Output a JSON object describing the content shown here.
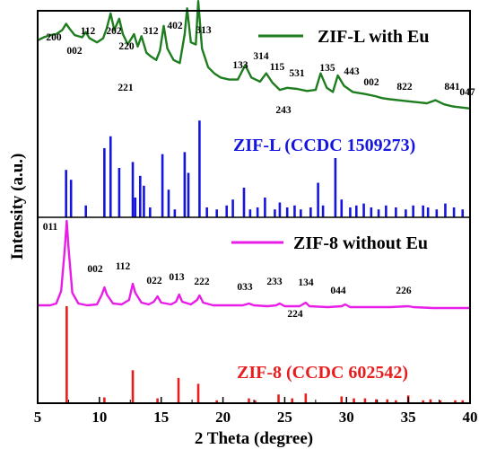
{
  "chart_data": {
    "type": "line",
    "xlabel": "2 Theta (degree)",
    "ylabel": "Intensity (a.u.)",
    "xlim": [
      5,
      40
    ],
    "x_ticks": [
      5,
      10,
      15,
      20,
      25,
      30,
      35,
      40
    ],
    "grid": false,
    "series": [
      {
        "name": "ZIF-L with Eu",
        "kind": "line",
        "color": "#1e7d1e",
        "points": [
          [
            5.0,
            0.74
          ],
          [
            5.5,
            0.77
          ],
          [
            6.0,
            0.79
          ],
          [
            6.5,
            0.8
          ],
          [
            7.0,
            0.84
          ],
          [
            7.3,
            0.9
          ],
          [
            7.6,
            0.85
          ],
          [
            8.0,
            0.79
          ],
          [
            8.6,
            0.77
          ],
          [
            8.9,
            0.82
          ],
          [
            9.2,
            0.76
          ],
          [
            9.8,
            0.72
          ],
          [
            10.3,
            0.76
          ],
          [
            10.6,
            0.86
          ],
          [
            10.9,
            1.0
          ],
          [
            11.2,
            0.84
          ],
          [
            11.6,
            0.95
          ],
          [
            11.9,
            0.8
          ],
          [
            12.3,
            0.7
          ],
          [
            12.8,
            0.8
          ],
          [
            13.1,
            0.68
          ],
          [
            13.4,
            0.78
          ],
          [
            13.8,
            0.62
          ],
          [
            14.2,
            0.58
          ],
          [
            14.6,
            0.55
          ],
          [
            14.9,
            0.64
          ],
          [
            15.2,
            0.88
          ],
          [
            15.5,
            0.66
          ],
          [
            16.0,
            0.55
          ],
          [
            16.5,
            0.52
          ],
          [
            16.9,
            0.8
          ],
          [
            17.1,
            1.05
          ],
          [
            17.4,
            0.72
          ],
          [
            17.8,
            0.7
          ],
          [
            18.0,
            1.12
          ],
          [
            18.3,
            0.66
          ],
          [
            18.8,
            0.48
          ],
          [
            19.3,
            0.42
          ],
          [
            19.8,
            0.38
          ],
          [
            20.5,
            0.36
          ],
          [
            21.2,
            0.36
          ],
          [
            21.8,
            0.5
          ],
          [
            22.3,
            0.38
          ],
          [
            23.0,
            0.34
          ],
          [
            23.5,
            0.42
          ],
          [
            24.0,
            0.33
          ],
          [
            24.6,
            0.26
          ],
          [
            25.2,
            0.28
          ],
          [
            26.0,
            0.27
          ],
          [
            26.8,
            0.25
          ],
          [
            27.5,
            0.26
          ],
          [
            27.9,
            0.42
          ],
          [
            28.4,
            0.28
          ],
          [
            28.9,
            0.24
          ],
          [
            29.3,
            0.4
          ],
          [
            29.8,
            0.3
          ],
          [
            30.5,
            0.24
          ],
          [
            31.5,
            0.22
          ],
          [
            32.3,
            0.2
          ],
          [
            32.9,
            0.18
          ],
          [
            33.5,
            0.17
          ],
          [
            34.2,
            0.16
          ],
          [
            35.0,
            0.15
          ],
          [
            35.8,
            0.14
          ],
          [
            36.5,
            0.13
          ],
          [
            37.2,
            0.16
          ],
          [
            37.9,
            0.12
          ],
          [
            38.6,
            0.1
          ],
          [
            39.3,
            0.09
          ],
          [
            40.0,
            0.08
          ]
        ]
      },
      {
        "name": "ZIF-L (CCDC 1509273)",
        "kind": "sticks",
        "color": "#1515e0",
        "sticks": [
          [
            7.3,
            0.48
          ],
          [
            7.7,
            0.38
          ],
          [
            8.9,
            0.12
          ],
          [
            10.4,
            0.7
          ],
          [
            10.9,
            0.82
          ],
          [
            11.6,
            0.5
          ],
          [
            12.7,
            0.56
          ],
          [
            12.9,
            0.2
          ],
          [
            13.3,
            0.42
          ],
          [
            13.6,
            0.32
          ],
          [
            14.1,
            0.1
          ],
          [
            15.1,
            0.64
          ],
          [
            15.6,
            0.28
          ],
          [
            16.1,
            0.08
          ],
          [
            16.9,
            0.66
          ],
          [
            17.2,
            0.45
          ],
          [
            18.1,
            0.98
          ],
          [
            18.7,
            0.1
          ],
          [
            19.5,
            0.08
          ],
          [
            20.3,
            0.12
          ],
          [
            20.8,
            0.18
          ],
          [
            21.7,
            0.3
          ],
          [
            22.2,
            0.08
          ],
          [
            22.8,
            0.1
          ],
          [
            23.4,
            0.2
          ],
          [
            24.2,
            0.08
          ],
          [
            24.6,
            0.15
          ],
          [
            25.2,
            0.1
          ],
          [
            25.8,
            0.12
          ],
          [
            26.3,
            0.08
          ],
          [
            27.1,
            0.1
          ],
          [
            27.7,
            0.35
          ],
          [
            28.1,
            0.12
          ],
          [
            29.1,
            0.6
          ],
          [
            29.6,
            0.18
          ],
          [
            30.3,
            0.1
          ],
          [
            30.8,
            0.12
          ],
          [
            31.4,
            0.14
          ],
          [
            32.0,
            0.1
          ],
          [
            32.6,
            0.08
          ],
          [
            33.2,
            0.12
          ],
          [
            34.0,
            0.1
          ],
          [
            34.8,
            0.08
          ],
          [
            35.4,
            0.12
          ],
          [
            36.2,
            0.12
          ],
          [
            36.6,
            0.1
          ],
          [
            37.3,
            0.08
          ],
          [
            38.0,
            0.14
          ],
          [
            38.7,
            0.1
          ],
          [
            39.4,
            0.08
          ]
        ]
      },
      {
        "name": "ZIF-8 without Eu",
        "kind": "line",
        "color": "#e81ee8",
        "points": [
          [
            5.0,
            0.06
          ],
          [
            6.0,
            0.06
          ],
          [
            6.5,
            0.08
          ],
          [
            6.9,
            0.22
          ],
          [
            7.2,
            0.7
          ],
          [
            7.35,
            1.0
          ],
          [
            7.5,
            0.7
          ],
          [
            7.8,
            0.2
          ],
          [
            8.3,
            0.08
          ],
          [
            9.0,
            0.06
          ],
          [
            9.8,
            0.07
          ],
          [
            10.2,
            0.18
          ],
          [
            10.4,
            0.26
          ],
          [
            10.6,
            0.18
          ],
          [
            11.1,
            0.08
          ],
          [
            11.8,
            0.07
          ],
          [
            12.4,
            0.12
          ],
          [
            12.7,
            0.3
          ],
          [
            12.9,
            0.2
          ],
          [
            13.4,
            0.09
          ],
          [
            14.0,
            0.07
          ],
          [
            14.4,
            0.1
          ],
          [
            14.7,
            0.16
          ],
          [
            15.0,
            0.09
          ],
          [
            15.8,
            0.07
          ],
          [
            16.2,
            0.1
          ],
          [
            16.45,
            0.18
          ],
          [
            16.7,
            0.1
          ],
          [
            17.4,
            0.07
          ],
          [
            17.9,
            0.12
          ],
          [
            18.1,
            0.17
          ],
          [
            18.4,
            0.09
          ],
          [
            19.2,
            0.06
          ],
          [
            20.5,
            0.06
          ],
          [
            21.6,
            0.06
          ],
          [
            22.1,
            0.08
          ],
          [
            22.5,
            0.06
          ],
          [
            23.6,
            0.05
          ],
          [
            24.3,
            0.06
          ],
          [
            24.6,
            0.08
          ],
          [
            25.0,
            0.05
          ],
          [
            26.2,
            0.05
          ],
          [
            26.7,
            0.09
          ],
          [
            27.0,
            0.05
          ],
          [
            28.5,
            0.04
          ],
          [
            29.6,
            0.05
          ],
          [
            29.9,
            0.07
          ],
          [
            30.3,
            0.04
          ],
          [
            32.0,
            0.04
          ],
          [
            33.5,
            0.04
          ],
          [
            35.0,
            0.05
          ],
          [
            35.4,
            0.04
          ],
          [
            37.0,
            0.03
          ],
          [
            38.5,
            0.03
          ],
          [
            40.0,
            0.03
          ]
        ]
      },
      {
        "name": "ZIF-8 (CCDC 602542)",
        "kind": "sticks",
        "color": "#e81e1e",
        "sticks": [
          [
            7.35,
            1.0
          ],
          [
            10.4,
            0.06
          ],
          [
            12.7,
            0.34
          ],
          [
            14.7,
            0.05
          ],
          [
            16.4,
            0.26
          ],
          [
            18.0,
            0.2
          ],
          [
            19.5,
            0.03
          ],
          [
            22.1,
            0.05
          ],
          [
            22.6,
            0.03
          ],
          [
            24.5,
            0.09
          ],
          [
            25.6,
            0.05
          ],
          [
            26.7,
            0.1
          ],
          [
            29.6,
            0.07
          ],
          [
            30.6,
            0.05
          ],
          [
            31.5,
            0.05
          ],
          [
            32.4,
            0.04
          ],
          [
            33.3,
            0.04
          ],
          [
            34.0,
            0.03
          ],
          [
            35.0,
            0.08
          ],
          [
            36.2,
            0.03
          ],
          [
            36.8,
            0.04
          ],
          [
            37.6,
            0.03
          ],
          [
            38.8,
            0.03
          ],
          [
            39.4,
            0.03
          ]
        ]
      }
    ],
    "peak_labels_zif_l": [
      "200",
      "002",
      "112",
      "202",
      "220",
      "221",
      "312",
      "402",
      "313",
      "133",
      "314",
      "115",
      "531",
      "243",
      "135",
      "443",
      "002",
      "822",
      "841",
      "047"
    ],
    "peak_labels_zif_8": [
      "011",
      "002",
      "112",
      "022",
      "013",
      "222",
      "033",
      "233",
      "224",
      "134",
      "044",
      "226"
    ]
  }
}
